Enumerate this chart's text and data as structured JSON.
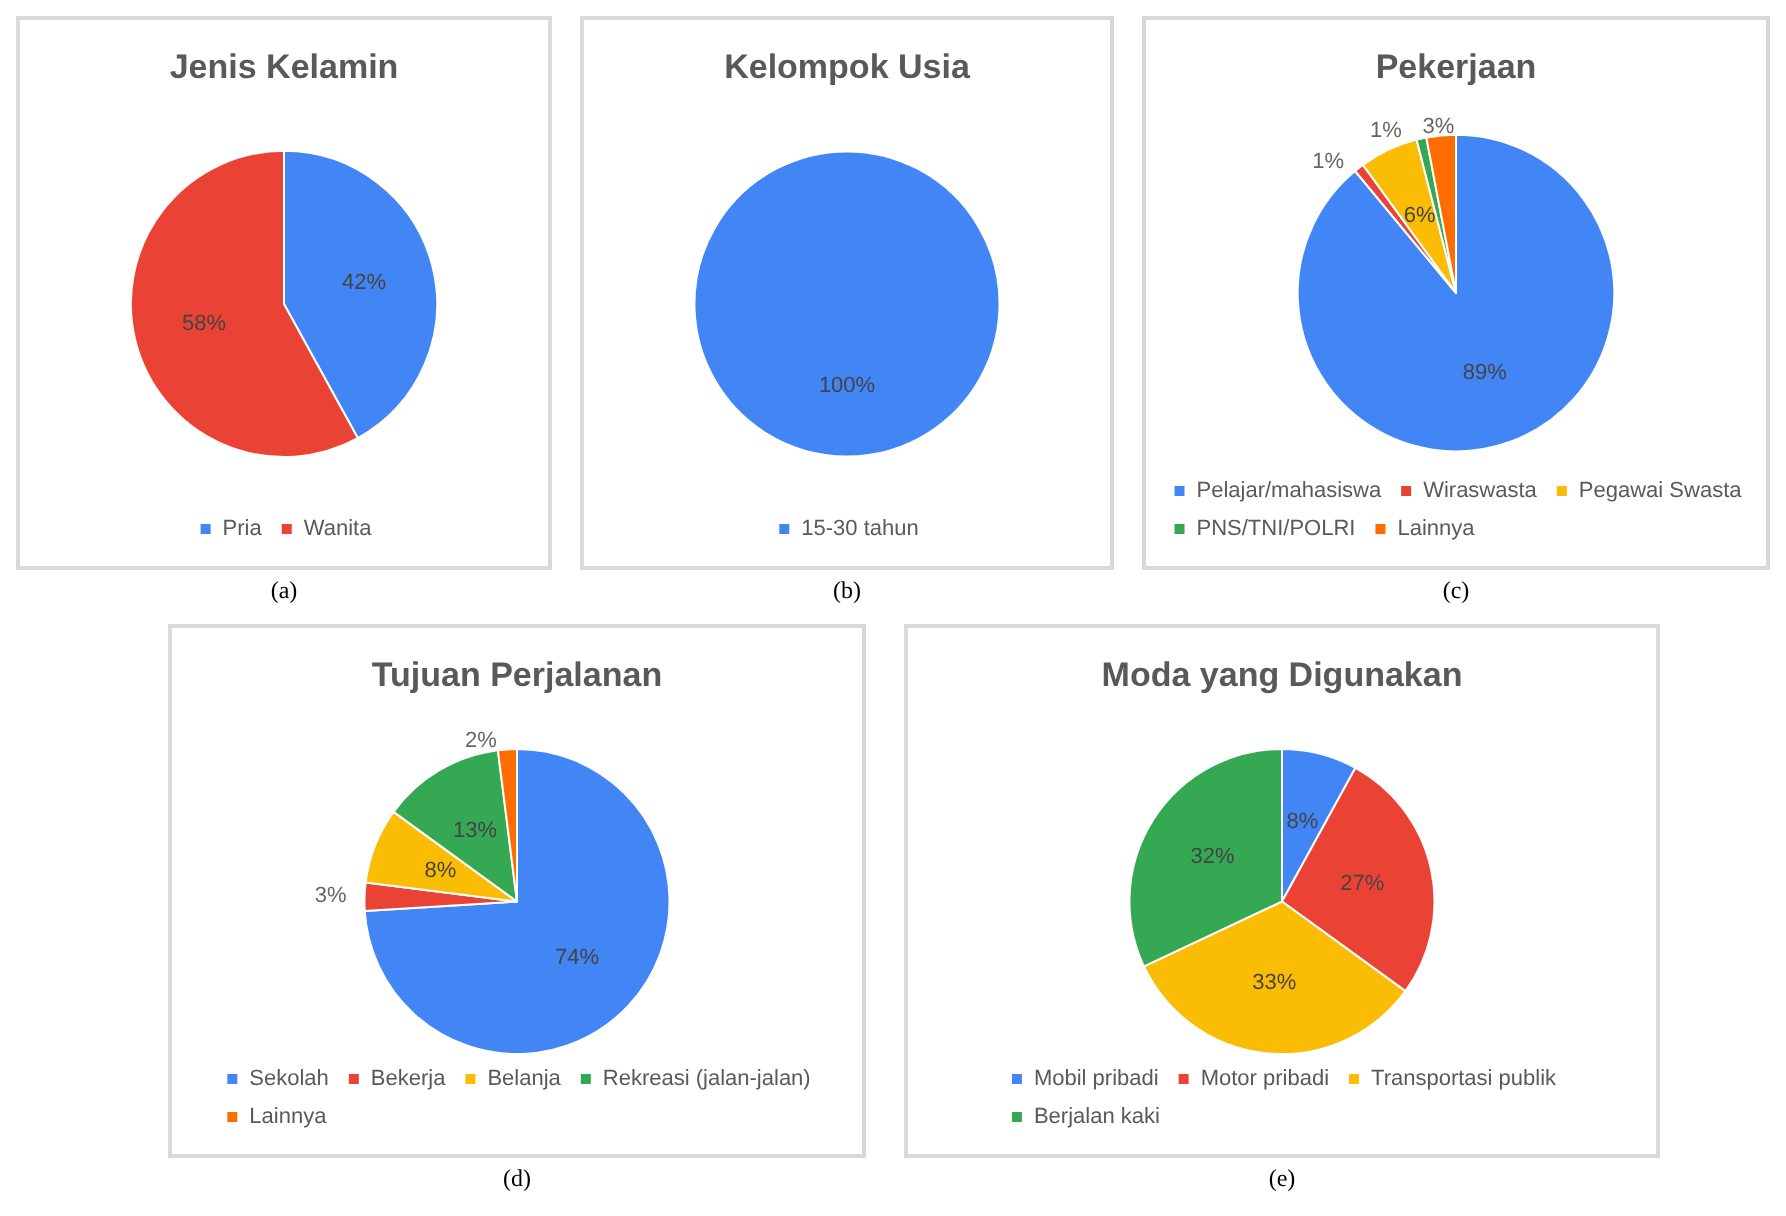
{
  "chart_data": [
    {
      "type": "pie",
      "title": "Jenis Kelamin",
      "categories": [
        "Pria",
        "Wanita"
      ],
      "values": [
        42,
        58
      ],
      "value_labels": [
        "42%",
        "58%"
      ],
      "colors": [
        "#4285f4",
        "#ea4335"
      ],
      "legend": "bottom",
      "annotations": [
        "(a)"
      ]
    },
    {
      "type": "pie",
      "title": "Kelompok Usia",
      "categories": [
        "15-30 tahun"
      ],
      "values": [
        100
      ],
      "value_labels": [
        "100%"
      ],
      "colors": [
        "#4285f4"
      ],
      "legend": "bottom",
      "annotations": [
        "(b)"
      ]
    },
    {
      "type": "pie",
      "title": "Pekerjaan",
      "categories": [
        "Pelajar/mahasiswa",
        "Wiraswasta",
        "Pegawai Swasta",
        "PNS/TNI/POLRI",
        "Lainnya"
      ],
      "values": [
        89,
        1,
        6,
        1,
        3
      ],
      "value_labels": [
        "89%",
        "1%",
        "6%",
        "1%",
        "3%"
      ],
      "colors": [
        "#4285f4",
        "#ea4335",
        "#fbbc04",
        "#34a853",
        "#ff6d01"
      ],
      "legend": "bottom",
      "annotations": [
        "(c)"
      ]
    },
    {
      "type": "pie",
      "title": "Tujuan Perjalanan",
      "categories": [
        "Sekolah",
        "Bekerja",
        "Belanja",
        "Rekreasi (jalan-jalan)",
        "Lainnya"
      ],
      "values": [
        74,
        3,
        8,
        13,
        2
      ],
      "value_labels": [
        "74%",
        "3%",
        "8%",
        "13%",
        "2%"
      ],
      "colors": [
        "#4285f4",
        "#ea4335",
        "#fbbc04",
        "#34a853",
        "#ff6d01"
      ],
      "legend": "bottom",
      "annotations": [
        "(d)"
      ]
    },
    {
      "type": "pie",
      "title": "Moda yang Digunakan",
      "categories": [
        "Mobil pribadi",
        "Motor pribadi",
        "Transportasi publik",
        "Berjalan kaki"
      ],
      "values": [
        8,
        27,
        33,
        32
      ],
      "value_labels": [
        "8%",
        "27%",
        "33%",
        "32%"
      ],
      "colors": [
        "#4285f4",
        "#ea4335",
        "#fbbc04",
        "#34a853"
      ],
      "legend": "bottom",
      "annotations": [
        "(e)"
      ]
    }
  ]
}
